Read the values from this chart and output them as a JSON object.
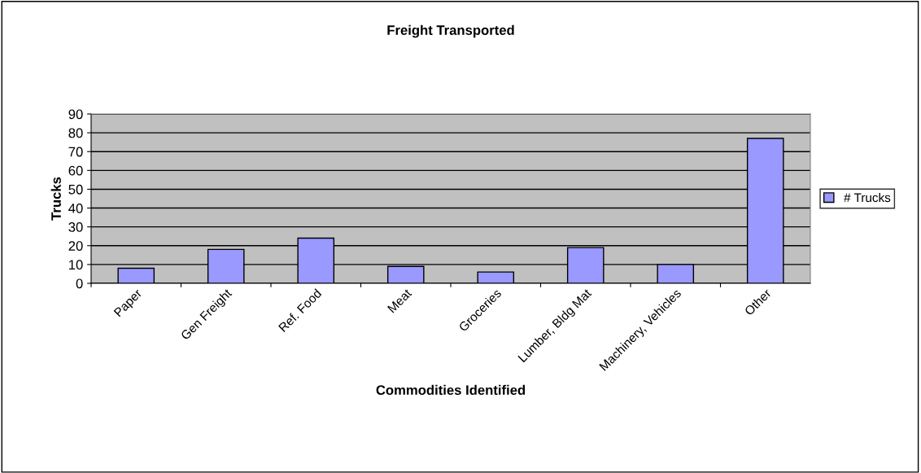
{
  "chart_data": {
    "type": "bar",
    "title": "Freight Transported",
    "xlabel": "Commodities Identified",
    "ylabel": "Trucks",
    "categories": [
      "Paper",
      "Gen Freight",
      "Ref. Food",
      "Meat",
      "Groceries",
      "Lumber, Bldg Mat",
      "Machinery, Vehicles",
      "Other"
    ],
    "series": [
      {
        "name": "# Trucks",
        "color": "#9999ff",
        "values": [
          8,
          18,
          24,
          9,
          6,
          19,
          10,
          77
        ]
      }
    ],
    "ylim": [
      0,
      90
    ],
    "yticks": [
      0,
      10,
      20,
      30,
      40,
      50,
      60,
      70,
      80,
      90
    ],
    "grid": "y",
    "legend": "right"
  }
}
